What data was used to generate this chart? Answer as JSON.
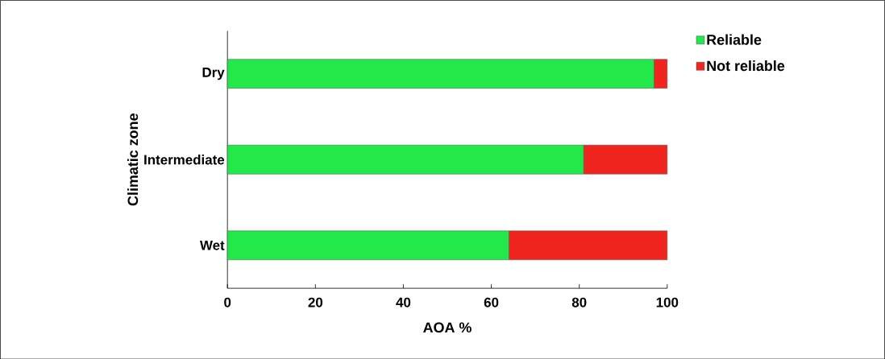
{
  "chart_data": {
    "type": "bar",
    "orientation": "horizontal",
    "stacked": true,
    "categories": [
      "Dry",
      "Intermediate",
      "Wet"
    ],
    "series": [
      {
        "name": "Reliable",
        "color": "#22e84a",
        "values": [
          97,
          81,
          64
        ]
      },
      {
        "name": "Not reliable",
        "color": "#f0261e",
        "values": [
          3,
          19,
          36
        ]
      }
    ],
    "xlabel": "AOA %",
    "ylabel": "Climatic zone",
    "xlim": [
      0,
      100
    ],
    "xticks": [
      0,
      20,
      40,
      60,
      80,
      100
    ],
    "legend": "right"
  }
}
